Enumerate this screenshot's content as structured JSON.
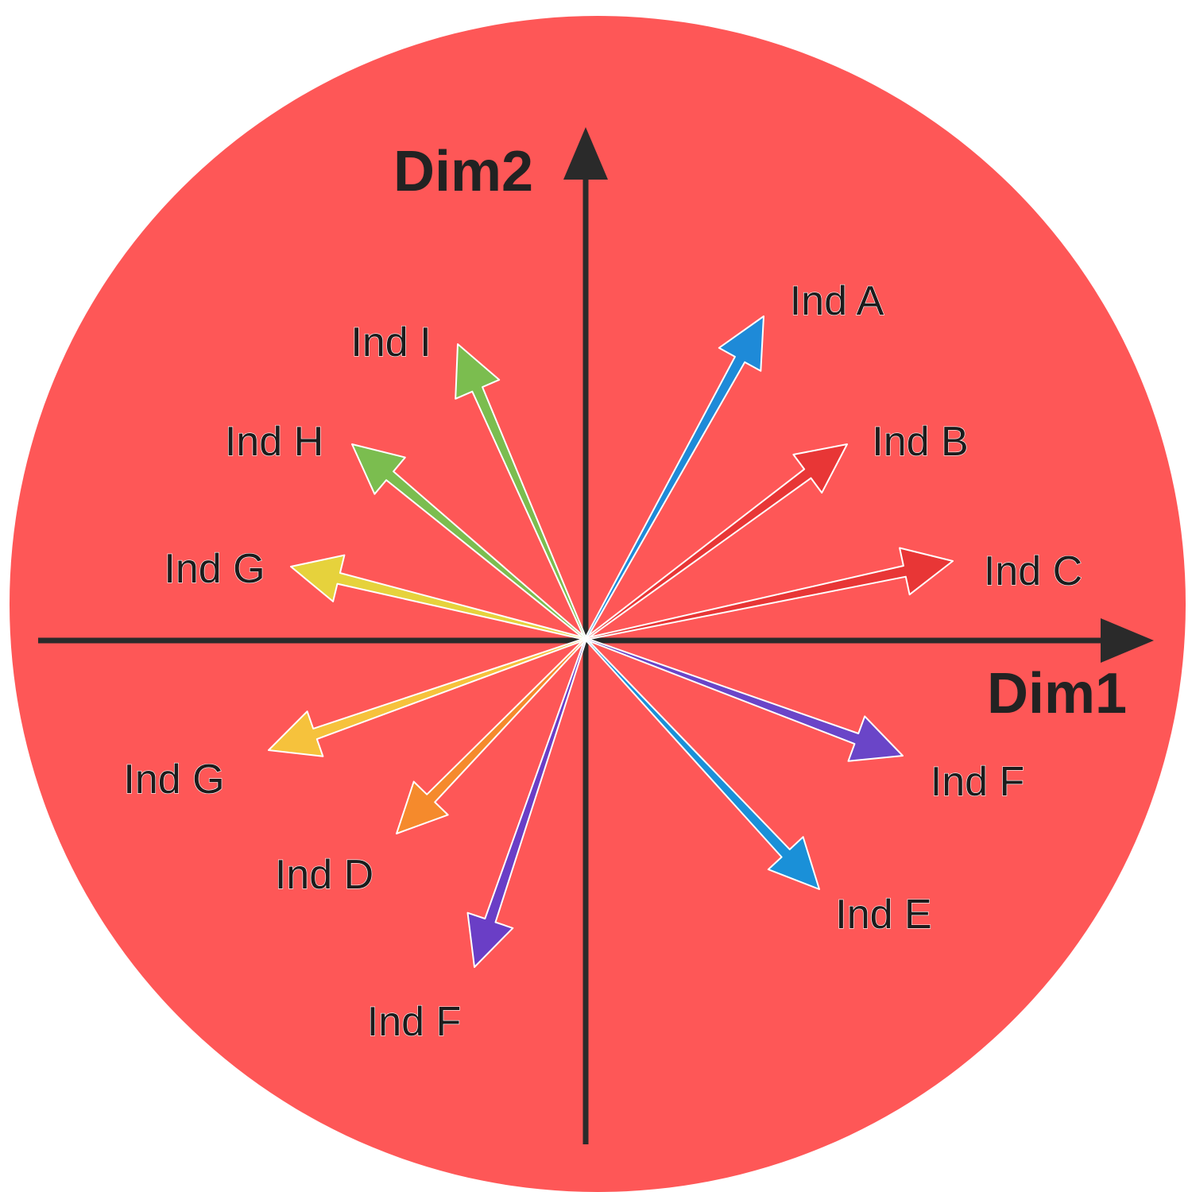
{
  "chart_data": {
    "type": "vector",
    "background_color": "#fe5757",
    "axis_color": "#2a2a2a",
    "xlabel": "Dim1",
    "ylabel": "Dim2",
    "grid": false,
    "vectors": [
      {
        "name": "Ind A",
        "x": 0.32,
        "y": 0.58,
        "color": "#1e8ad8"
      },
      {
        "name": "Ind B",
        "x": 0.47,
        "y": 0.35,
        "color": "#e83636"
      },
      {
        "name": "Ind C",
        "x": 0.66,
        "y": 0.14,
        "color": "#e83636"
      },
      {
        "name": "Ind F",
        "x": 0.57,
        "y": -0.21,
        "color": "#6a45c8"
      },
      {
        "name": "Ind E",
        "x": 0.42,
        "y": -0.45,
        "color": "#1a90d8"
      },
      {
        "name": "Ind F",
        "x": -0.2,
        "y": -0.59,
        "color": "#6a3ec6"
      },
      {
        "name": "Ind D",
        "x": -0.34,
        "y": -0.35,
        "color": "#f58a2c"
      },
      {
        "name": "Ind G",
        "x": -0.57,
        "y": -0.2,
        "color": "#f6c23c"
      },
      {
        "name": "Ind G",
        "x": -0.53,
        "y": 0.13,
        "color": "#e6d23c"
      },
      {
        "name": "Ind H",
        "x": -0.42,
        "y": 0.35,
        "color": "#7bbd4f"
      },
      {
        "name": "Ind I",
        "x": -0.23,
        "y": 0.53,
        "color": "#7bbd4f"
      }
    ]
  }
}
